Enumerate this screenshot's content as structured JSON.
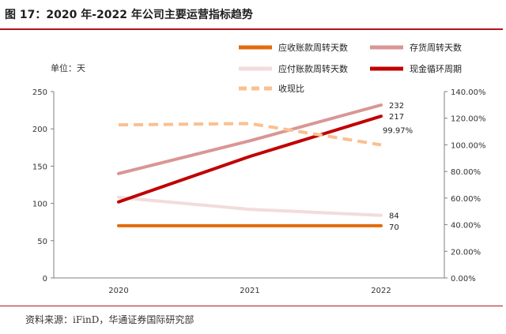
{
  "header": {
    "title": "图 17：2020 年-2022 年公司主要运营指标趋势"
  },
  "footer": {
    "source": "资料来源：iFinD，华通证券国际研究部"
  },
  "chart_data": {
    "type": "line",
    "unit_label": "单位：天",
    "categories": [
      "2020",
      "2021",
      "2022"
    ],
    "y_left": {
      "ylim": [
        0,
        250
      ],
      "ticks": [
        "0",
        "50",
        "100",
        "150",
        "200",
        "250"
      ]
    },
    "y_right": {
      "ylim": [
        0,
        140
      ],
      "ticks": [
        "0.00%",
        "20.00%",
        "40.00%",
        "60.00%",
        "80.00%",
        "100.00%",
        "120.00%",
        "140.00%"
      ]
    },
    "series": [
      {
        "name": "应收账款周转天数",
        "axis": "left",
        "values": [
          70,
          70,
          70
        ],
        "color": "#e36c0a",
        "style": "solid",
        "label": "70"
      },
      {
        "name": "存货周转天数",
        "axis": "left",
        "values": [
          140,
          184,
          232
        ],
        "color": "#d99694",
        "style": "solid",
        "label": "232"
      },
      {
        "name": "应付账款周转天数",
        "axis": "left",
        "values": [
          108,
          92,
          84
        ],
        "color": "#f2dcdb",
        "style": "solid",
        "label": "84"
      },
      {
        "name": "现金循环周期",
        "axis": "left",
        "values": [
          102,
          163,
          217
        ],
        "color": "#c00000",
        "style": "solid",
        "label": "217"
      },
      {
        "name": "收现比",
        "axis": "right",
        "values": [
          115,
          116,
          99.97
        ],
        "color": "#fac090",
        "style": "dashed",
        "label": "99.97%"
      }
    ]
  }
}
